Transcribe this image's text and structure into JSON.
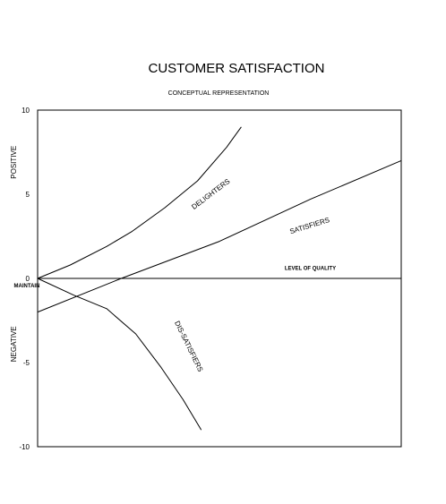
{
  "chart_data": {
    "type": "line",
    "title": "CUSTOMER SATISFACTION",
    "subtitle": "CONCEPTUAL REPRESENTATION",
    "ylim": [
      -10,
      10
    ],
    "xlim": [
      0,
      10
    ],
    "y_ticks": [
      "10",
      "5",
      "0",
      "-5",
      "-10"
    ],
    "y_tick_values": [
      10,
      5,
      0,
      -5,
      -10
    ],
    "positive_label": "POSITIVE",
    "negative_label": "NEGATIVE",
    "maintain_label": "MAINTAIN",
    "level_of_quality_label": "LEVEL OF QUALITY",
    "grid": false,
    "series": [
      {
        "name": "DELIGHTERS",
        "x": [
          0,
          0.9,
          1.9,
          2.6,
          3.5,
          4.4,
          5.2,
          5.6
        ],
        "y": [
          0,
          0.8,
          1.9,
          2.8,
          4.2,
          5.8,
          7.8,
          9.0
        ]
      },
      {
        "name": "SATISFIERS",
        "x": [
          0,
          2.3,
          5.0,
          7.5,
          10.0
        ],
        "y": [
          -2,
          0.0,
          2.2,
          4.7,
          7.0
        ]
      },
      {
        "name": "DIS-SATISFIERS",
        "x": [
          0,
          1.0,
          1.9,
          2.7,
          3.4,
          4.0,
          4.5
        ],
        "y": [
          0,
          -1.0,
          -1.8,
          -3.3,
          -5.3,
          -7.2,
          -9.0
        ]
      },
      {
        "name": "LEVEL OF QUALITY",
        "x": [
          0,
          10
        ],
        "y": [
          0,
          0
        ]
      }
    ],
    "annotations": [
      {
        "text": "DELIGHTERS",
        "x": 4.8,
        "y": 4.9,
        "angle": -37
      },
      {
        "text": "SATISFIERS",
        "x": 7.5,
        "y": 3.0,
        "angle": -17
      },
      {
        "text": "DIS-SATISFIERS",
        "x": 4.1,
        "y": -4.1,
        "angle": 64
      },
      {
        "text": "LEVEL OF QUALITY",
        "x": 7.5,
        "y": 0.5,
        "angle": 0
      }
    ]
  }
}
